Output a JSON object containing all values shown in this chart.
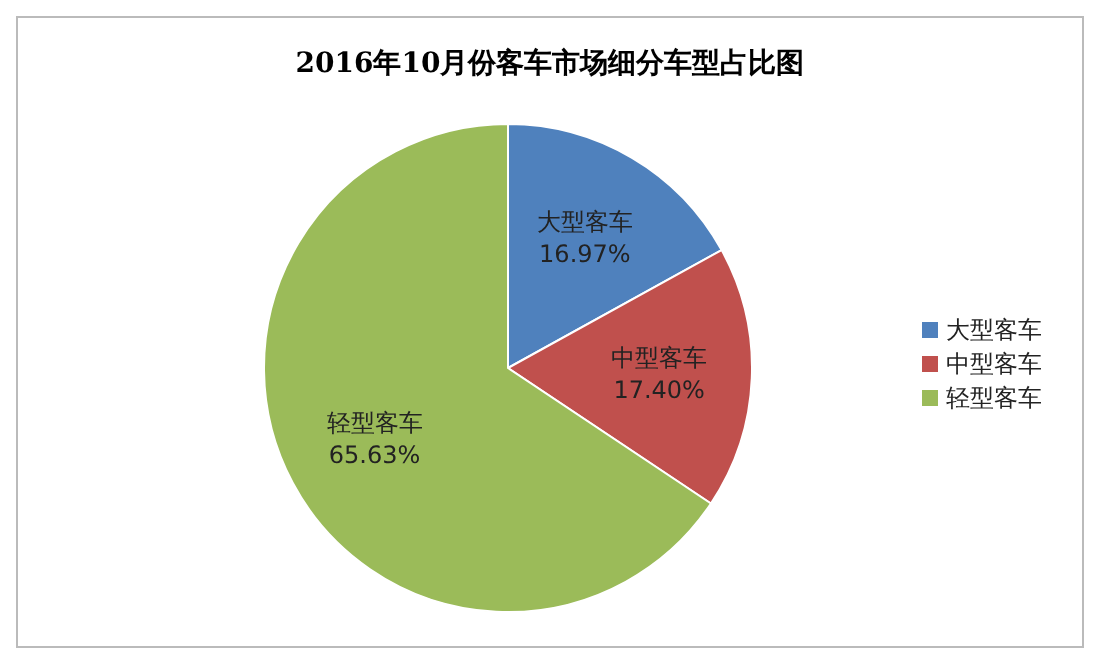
{
  "chart_data": {
    "type": "pie",
    "title": "2016年10月份客车市场细分车型占比图",
    "categories": [
      "大型客车",
      "中型客车",
      "轻型客车"
    ],
    "values": [
      16.97,
      17.4,
      65.63
    ],
    "value_labels": [
      "16.97%",
      "17.40%",
      "65.63%"
    ],
    "colors": [
      "#4f81bd",
      "#c0504d",
      "#9bbb59"
    ],
    "legend": "right"
  }
}
